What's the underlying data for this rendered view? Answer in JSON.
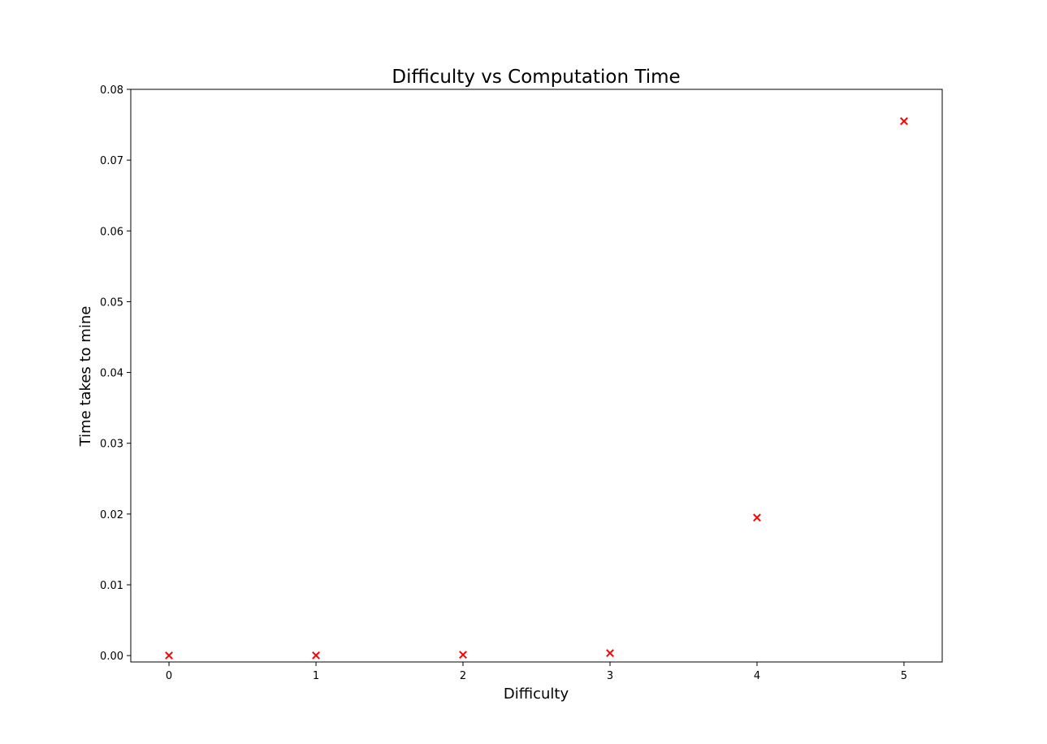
{
  "chart_data": {
    "type": "scatter",
    "title": "Difficulty vs Computation Time",
    "xlabel": "Difficulty",
    "ylabel": "Time takes to mine",
    "xlim": [
      -0.26,
      5.26
    ],
    "ylim": [
      -0.0009,
      0.08
    ],
    "xticks": [
      0,
      1,
      2,
      3,
      4,
      5
    ],
    "xtick_labels": [
      "0",
      "1",
      "2",
      "3",
      "4",
      "5"
    ],
    "yticks": [
      0.0,
      0.01,
      0.02,
      0.03,
      0.04,
      0.05,
      0.06,
      0.07,
      0.08
    ],
    "ytick_labels": [
      "0.00",
      "0.01",
      "0.02",
      "0.03",
      "0.04",
      "0.05",
      "0.06",
      "0.07",
      "0.08"
    ],
    "grid": false,
    "marker": "x",
    "color": "#ff0000",
    "points": [
      {
        "x": 0,
        "y": 2e-05
      },
      {
        "x": 1,
        "y": 3e-05
      },
      {
        "x": 2,
        "y": 0.00012
      },
      {
        "x": 3,
        "y": 0.00035
      },
      {
        "x": 4,
        "y": 0.0195
      },
      {
        "x": 5,
        "y": 0.0755
      }
    ]
  }
}
